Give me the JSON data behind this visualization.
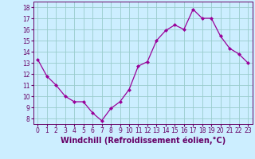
{
  "x": [
    0,
    1,
    2,
    3,
    4,
    5,
    6,
    7,
    8,
    9,
    10,
    11,
    12,
    13,
    14,
    15,
    16,
    17,
    18,
    19,
    20,
    21,
    22,
    23
  ],
  "y": [
    13.3,
    11.8,
    11.0,
    10.0,
    9.5,
    9.5,
    8.5,
    7.8,
    8.9,
    9.5,
    10.6,
    12.7,
    13.1,
    15.0,
    15.9,
    16.4,
    16.0,
    17.8,
    17.0,
    17.0,
    15.4,
    14.3,
    13.8,
    13.0
  ],
  "line_color": "#990099",
  "marker": "D",
  "marker_size": 2.0,
  "bg_color": "#cceeff",
  "grid_color": "#99cccc",
  "xlabel": "Windchill (Refroidissement éolien,°C)",
  "xlim": [
    -0.5,
    23.5
  ],
  "ylim": [
    7.5,
    18.5
  ],
  "yticks": [
    8,
    9,
    10,
    11,
    12,
    13,
    14,
    15,
    16,
    17,
    18
  ],
  "xticks": [
    0,
    1,
    2,
    3,
    4,
    5,
    6,
    7,
    8,
    9,
    10,
    11,
    12,
    13,
    14,
    15,
    16,
    17,
    18,
    19,
    20,
    21,
    22,
    23
  ],
  "tick_fontsize": 5.5,
  "label_fontsize": 7.0,
  "text_color": "#660066",
  "spine_color": "#660066",
  "linewidth": 0.9
}
